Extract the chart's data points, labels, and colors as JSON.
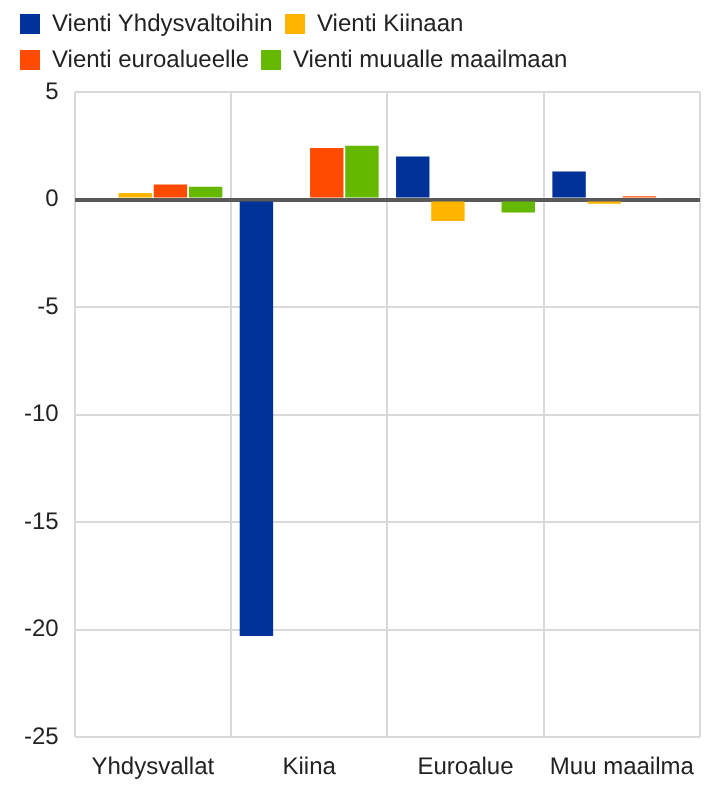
{
  "chart_data": {
    "type": "bar",
    "categories": [
      "Yhdysvallat",
      "Kiina",
      "Euroalue",
      "Muu maailma"
    ],
    "series": [
      {
        "name": "Vienti Yhdysvaltoihin",
        "color": "#003299",
        "values": [
          0,
          -20.3,
          2.0,
          1.3
        ]
      },
      {
        "name": "Vienti Kiinaan",
        "color": "#ffb400",
        "values": [
          0.3,
          0,
          -1.0,
          -0.2
        ]
      },
      {
        "name": "Vienti euroalueelle",
        "color": "#ff4b00",
        "values": [
          0.7,
          2.4,
          0,
          0.15
        ]
      },
      {
        "name": "Vienti muualle maailmaan",
        "color": "#65b800",
        "values": [
          0.6,
          2.5,
          -0.6,
          0.1
        ]
      }
    ],
    "ylim": [
      -25,
      5
    ],
    "yticks": [
      -25,
      -20,
      -15,
      -10,
      -5,
      0,
      5
    ],
    "grid": true,
    "legend": "top left"
  }
}
